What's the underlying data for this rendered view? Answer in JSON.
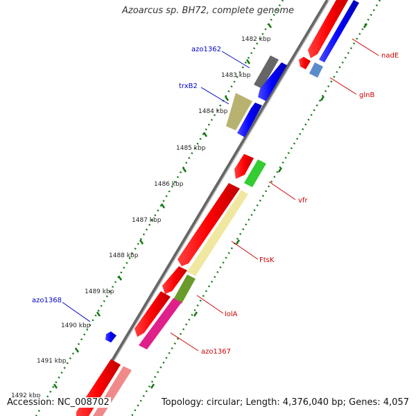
{
  "title": "Azoarcus sp. BH72, complete genome",
  "footer": {
    "accession": "Accession: NC_008702",
    "topology": "Topology: circular; Length: 4,376,040 bp; Genes: 4,057"
  },
  "colors": {
    "backbone": "#888888",
    "tick_major": "#007700",
    "tick_minor": "#228822",
    "label_red": "#cc0000",
    "label_blue": "#0000cc"
  },
  "scale_labels": [
    "1482 kbp",
    "1483 kbp",
    "1484 kbp",
    "1485 kbp",
    "1486 kbp",
    "1487 kbp",
    "1488 kbp",
    "1489 kbp",
    "1490 kbp",
    "1491 kbp",
    "1492 kbp"
  ],
  "genes": [
    {
      "label": "nadE",
      "label_color": "red"
    },
    {
      "label": "glnB",
      "label_color": "red"
    },
    {
      "label": "azo1362",
      "label_color": "blue"
    },
    {
      "label": "trxB2",
      "label_color": "blue"
    },
    {
      "label": "vfr",
      "label_color": "red"
    },
    {
      "label": "FtsK",
      "label_color": "red"
    },
    {
      "label": "lolA",
      "label_color": "red"
    },
    {
      "label": "azo1368",
      "label_color": "blue"
    },
    {
      "label": "azo1367",
      "label_color": "red"
    }
  ]
}
